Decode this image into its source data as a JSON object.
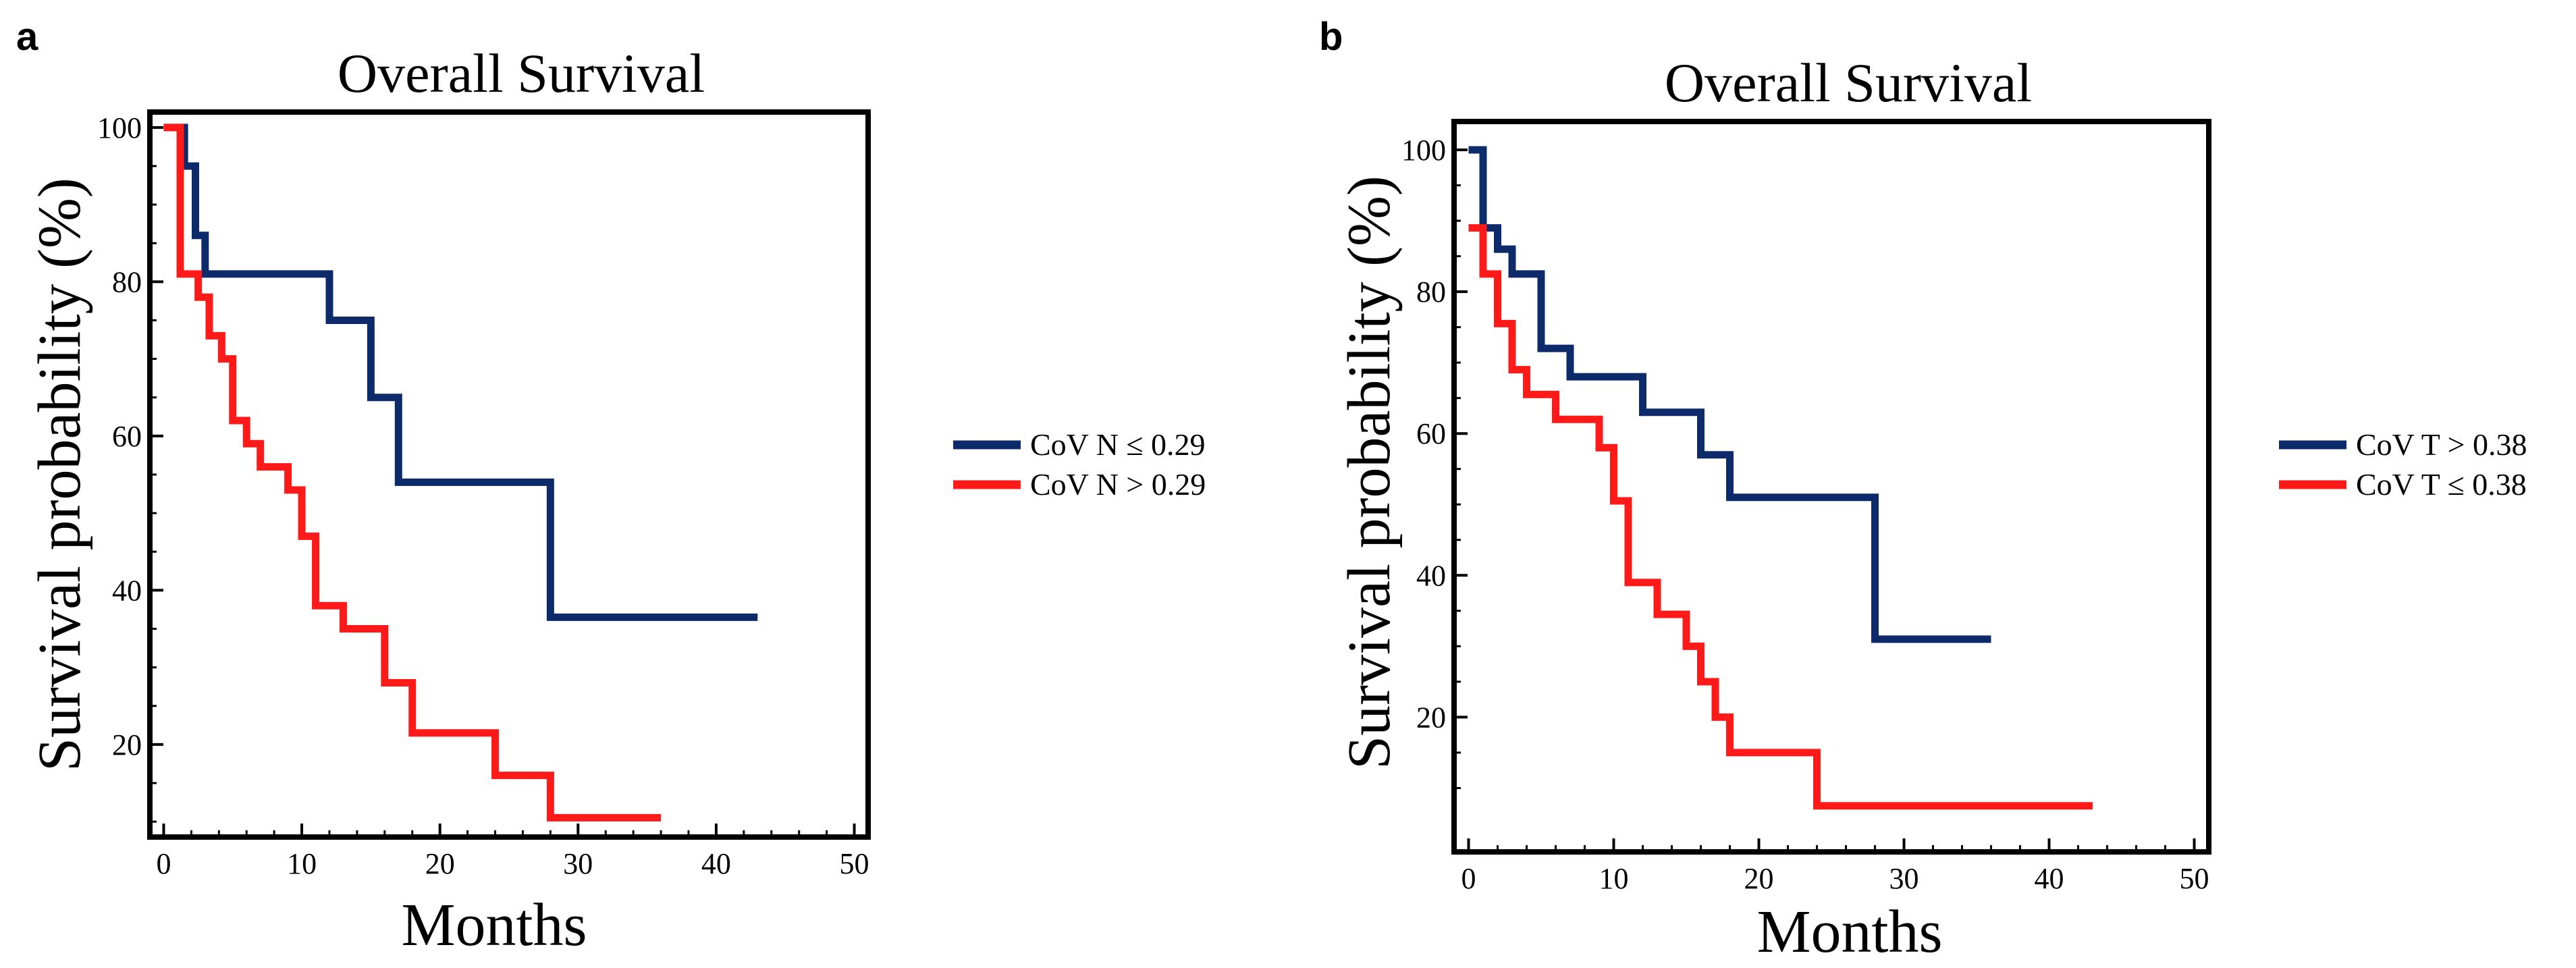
{
  "colors": {
    "navy": "#0d2a6b",
    "red": "#ff1a1a",
    "frame": "#000000"
  },
  "chart_data": [
    {
      "panel": "a",
      "type": "line",
      "step": true,
      "title": "Overall Survival",
      "xlabel": "Months",
      "ylabel": "Survival  probability  (%)",
      "xlim": [
        -1,
        51
      ],
      "ylim": [
        8,
        102
      ],
      "xticks": [
        0,
        10,
        20,
        30,
        40,
        50
      ],
      "yticks": [
        20,
        40,
        60,
        80,
        100
      ],
      "legend_position": "right",
      "series": [
        {
          "name": "CoV N ≤ 0.29",
          "color": "#0d2a6b",
          "x": [
            0,
            1.5,
            2.3,
            3,
            12,
            15,
            17,
            28,
            43
          ],
          "y": [
            100,
            95,
            86,
            81,
            75,
            65,
            54,
            36.5,
            36.5
          ]
        },
        {
          "name": "CoV N > 0.29",
          "color": "#ff1a1a",
          "x": [
            0,
            0.8,
            1.2,
            2.5,
            3.3,
            4.2,
            5,
            6,
            7,
            9,
            10,
            11,
            13,
            16,
            18,
            24,
            28,
            36
          ],
          "y": [
            100,
            100,
            81,
            78,
            73,
            70,
            62,
            59,
            56,
            53,
            47,
            38,
            35,
            28,
            21.5,
            16,
            10.5,
            10.5
          ]
        }
      ]
    },
    {
      "panel": "b",
      "type": "line",
      "step": true,
      "title": "Overall Survival",
      "xlabel": "Months",
      "ylabel": "Survival  probability  (%)",
      "xlim": [
        -1,
        51
      ],
      "ylim": [
        1,
        104
      ],
      "xticks": [
        0,
        10,
        20,
        30,
        40,
        50
      ],
      "yticks": [
        20,
        40,
        60,
        80,
        100
      ],
      "legend_position": "right",
      "series": [
        {
          "name": "CoV T > 0.38",
          "color": "#0d2a6b",
          "x": [
            0,
            1,
            2,
            3,
            5,
            7,
            12,
            16,
            18,
            28,
            36
          ],
          "y": [
            100,
            89,
            86,
            82.5,
            72,
            68,
            63,
            57,
            51,
            31,
            31
          ]
        },
        {
          "name": "CoV T ≤ 0.38",
          "color": "#ff1a1a",
          "x": [
            0,
            1,
            2,
            3,
            4,
            6,
            9,
            10,
            11,
            13,
            15,
            16,
            17,
            18,
            24,
            43
          ],
          "y": [
            89,
            82.5,
            75.5,
            69,
            65.5,
            62,
            58,
            50.5,
            39,
            34.5,
            30,
            25,
            20,
            15,
            7.5,
            7.5
          ]
        }
      ]
    }
  ]
}
